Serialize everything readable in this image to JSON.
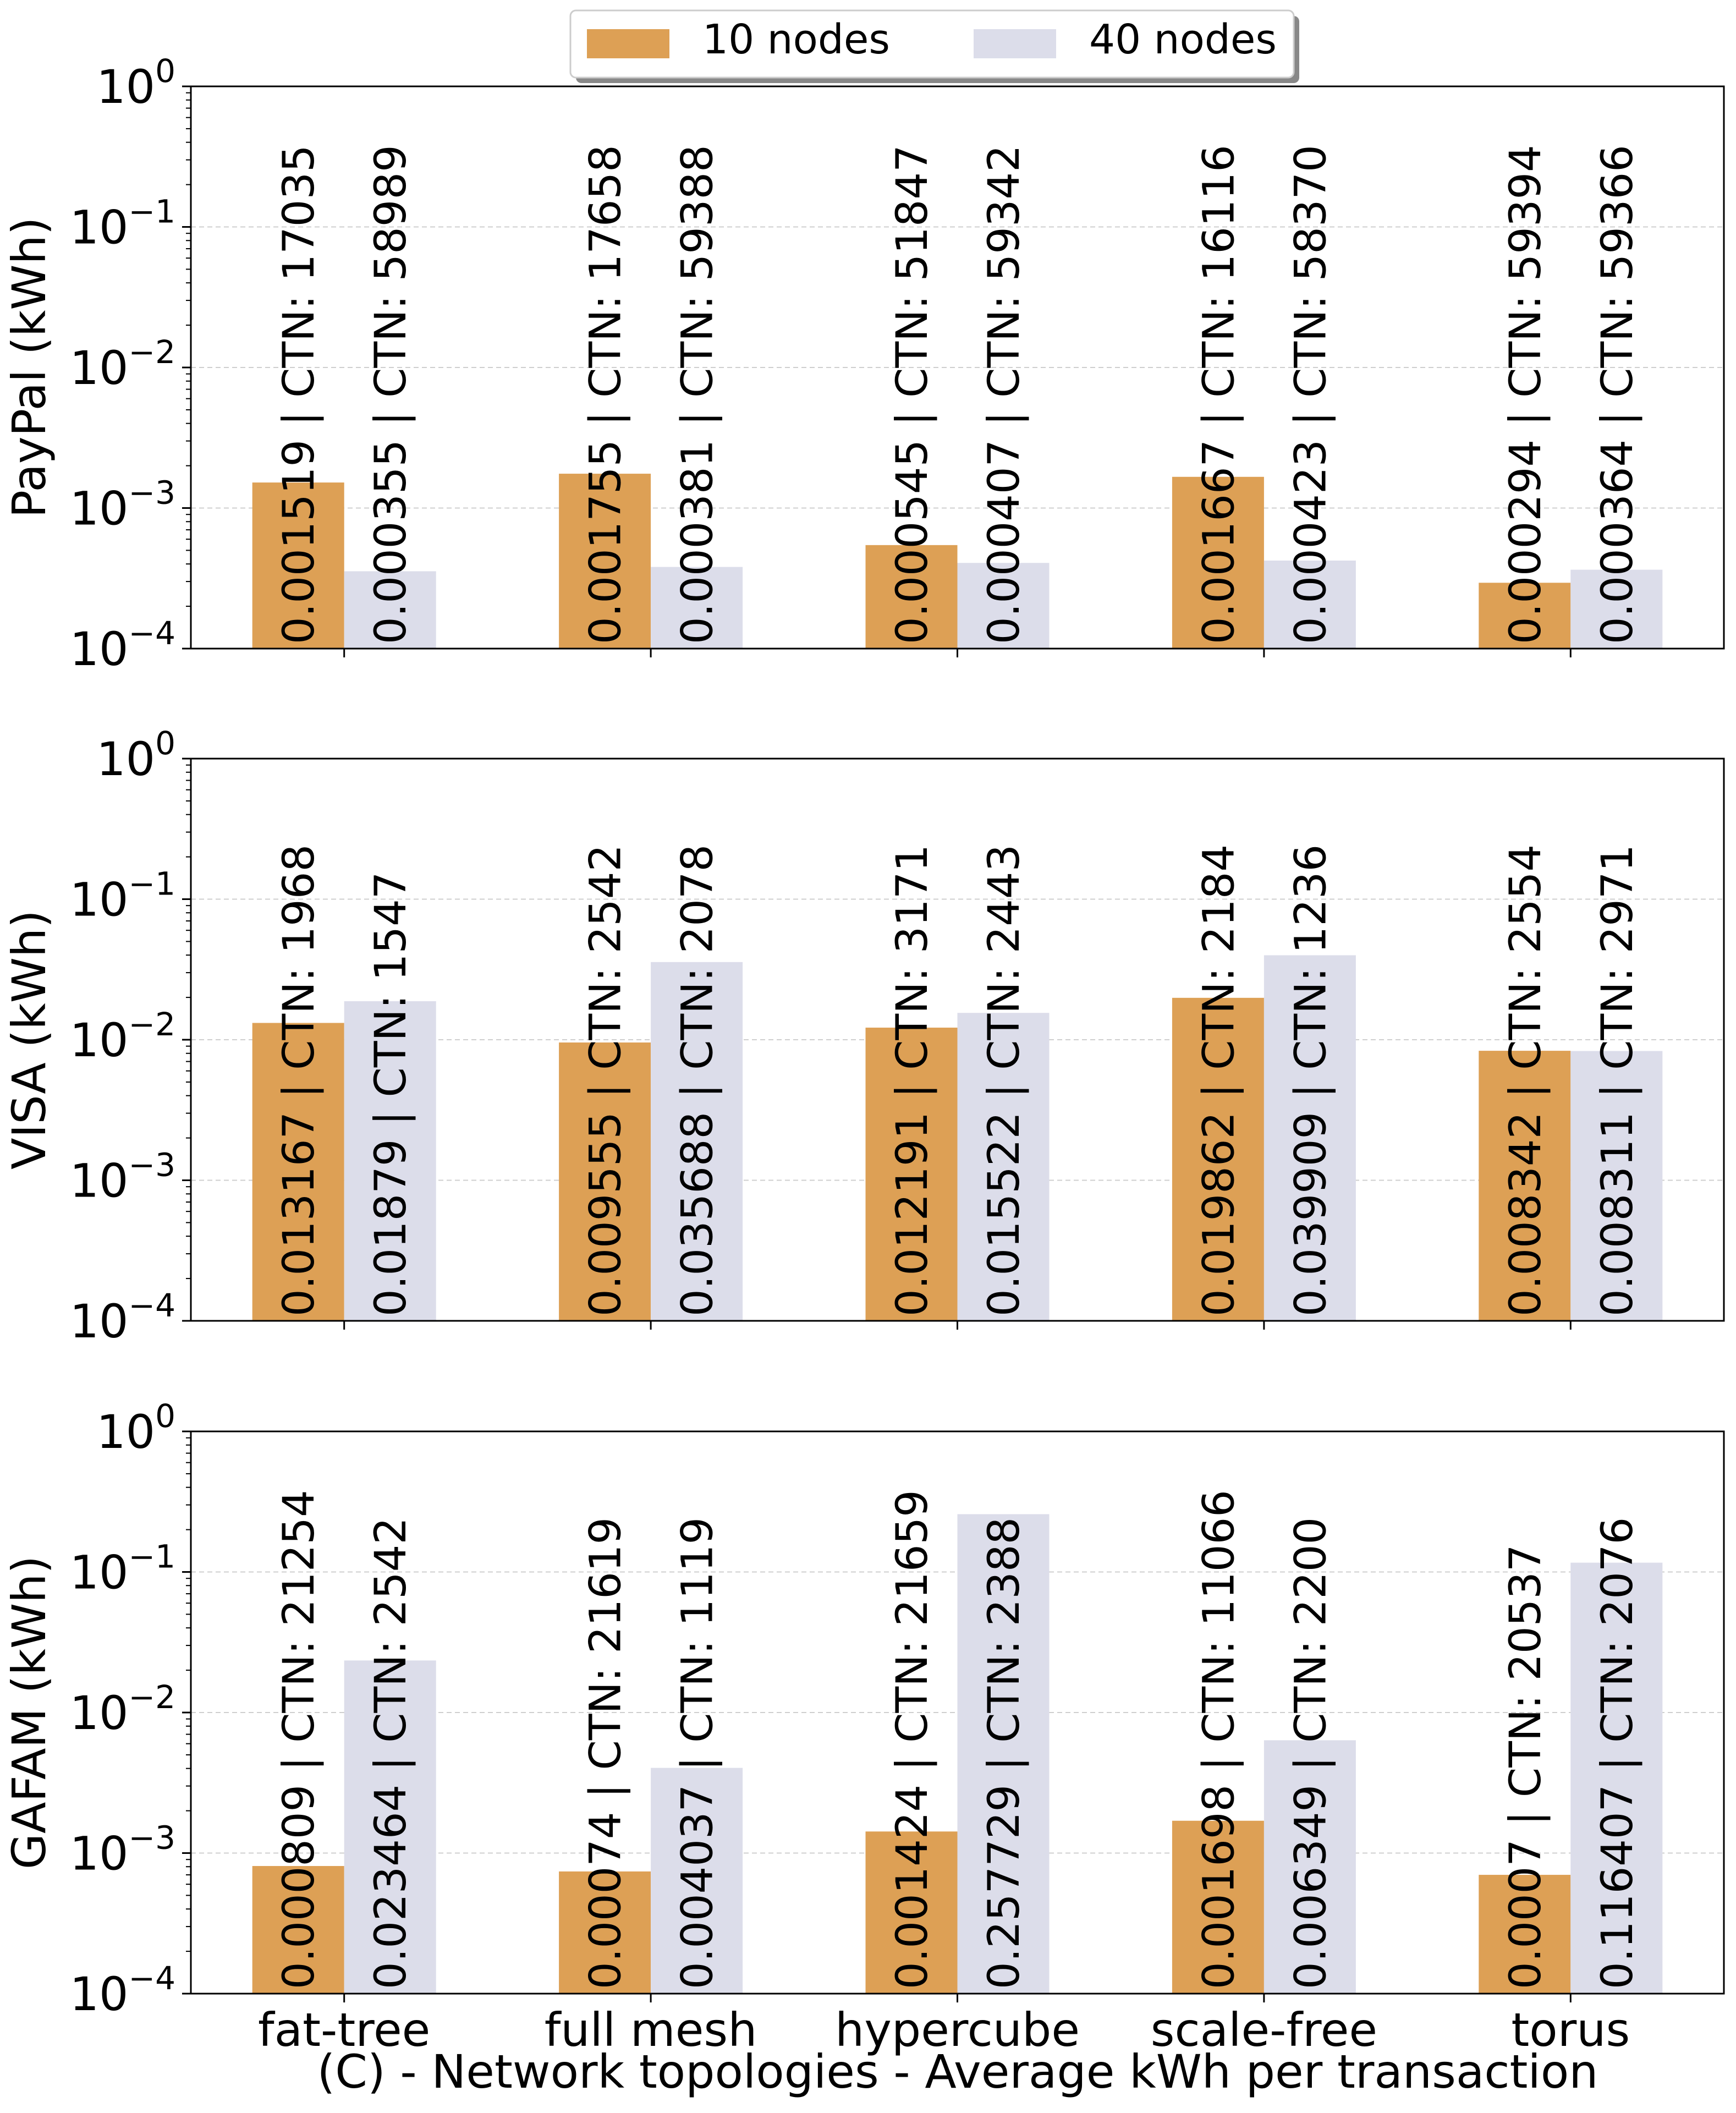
{
  "legend": {
    "location": "upper center",
    "entries": [
      {
        "label": "10 nodes",
        "color": "#DDA055"
      },
      {
        "label": "40 nodes",
        "color": "#DCDDEA"
      }
    ]
  },
  "chart_data": [
    {
      "type": "bar",
      "ylabel": "PayPal (kWh)",
      "yscale": "log",
      "ylim": [
        0.0001,
        1
      ],
      "yticks": [
        {
          "value": 1,
          "base": "10",
          "exp": "0"
        },
        {
          "value": 0.1,
          "base": "10",
          "exp": "−1"
        },
        {
          "value": 0.01,
          "base": "10",
          "exp": "−2"
        },
        {
          "value": 0.001,
          "base": "10",
          "exp": "−3"
        },
        {
          "value": 0.0001,
          "base": "10",
          "exp": "−4"
        }
      ],
      "grid": "horizontal dashed",
      "categories": [
        "fat-tree",
        "full mesh",
        "hypercube",
        "scale-free",
        "torus"
      ],
      "series": [
        {
          "name": "10 nodes",
          "color": "#DDA055",
          "values": [
            0.001519,
            0.001755,
            0.000545,
            0.001667,
            0.000294
          ],
          "labels": [
            "0.001519 | CTN: 17035",
            "0.001755 | CTN: 17658",
            "0.000545 | CTN: 51847",
            "0.001667 | CTN: 16116",
            "0.000294 | CTN: 59394"
          ]
        },
        {
          "name": "40 nodes",
          "color": "#DCDDEA",
          "values": [
            0.000355,
            0.000381,
            0.000407,
            0.000423,
            0.000364
          ],
          "labels": [
            "0.000355 | CTN: 58989",
            "0.000381 | CTN: 59388",
            "0.000407 | CTN: 59342",
            "0.000423 | CTN: 58370",
            "0.000364 | CTN: 59366"
          ]
        }
      ]
    },
    {
      "type": "bar",
      "ylabel": "VISA (kWh)",
      "yscale": "log",
      "ylim": [
        0.0001,
        1
      ],
      "yticks": [
        {
          "value": 1,
          "base": "10",
          "exp": "0"
        },
        {
          "value": 0.1,
          "base": "10",
          "exp": "−1"
        },
        {
          "value": 0.01,
          "base": "10",
          "exp": "−2"
        },
        {
          "value": 0.001,
          "base": "10",
          "exp": "−3"
        },
        {
          "value": 0.0001,
          "base": "10",
          "exp": "−4"
        }
      ],
      "grid": "horizontal dashed",
      "categories": [
        "fat-tree",
        "full mesh",
        "hypercube",
        "scale-free",
        "torus"
      ],
      "series": [
        {
          "name": "10 nodes",
          "color": "#DDA055",
          "values": [
            0.013167,
            0.009555,
            0.012191,
            0.019862,
            0.008342
          ],
          "labels": [
            "0.013167 | CTN: 1968",
            "0.009555 | CTN: 2542",
            "0.012191 | CTN: 3171",
            "0.019862 | CTN: 2184",
            "0.008342 | CTN: 2554"
          ]
        },
        {
          "name": "40 nodes",
          "color": "#DCDDEA",
          "values": [
            0.01879,
            0.035688,
            0.015522,
            0.039909,
            0.008311
          ],
          "labels": [
            "0.01879 | CTN: 1547",
            "0.035688 | CTN: 2078",
            "0.015522 | CTN: 2443",
            "0.039909 | CTN: 1236",
            "0.008311 | CTN: 2971"
          ]
        }
      ]
    },
    {
      "type": "bar",
      "ylabel": "GAFAM (kWh)",
      "xlabel": "(C) - Network topologies - Average kWh per transaction",
      "yscale": "log",
      "ylim": [
        0.0001,
        1
      ],
      "yticks": [
        {
          "value": 1,
          "base": "10",
          "exp": "0"
        },
        {
          "value": 0.1,
          "base": "10",
          "exp": "−1"
        },
        {
          "value": 0.01,
          "base": "10",
          "exp": "−2"
        },
        {
          "value": 0.001,
          "base": "10",
          "exp": "−3"
        },
        {
          "value": 0.0001,
          "base": "10",
          "exp": "−4"
        }
      ],
      "grid": "horizontal dashed",
      "categories": [
        "fat-tree",
        "full mesh",
        "hypercube",
        "scale-free",
        "torus"
      ],
      "series": [
        {
          "name": "10 nodes",
          "color": "#DDA055",
          "values": [
            0.000809,
            0.00074,
            0.001424,
            0.001698,
            0.0007
          ],
          "labels": [
            "0.000809 | CTN: 21254",
            "0.00074 | CTN: 21619",
            "0.001424 | CTN: 21659",
            "0.001698 | CTN: 11066",
            "0.0007 | CTN: 20537"
          ]
        },
        {
          "name": "40 nodes",
          "color": "#DCDDEA",
          "values": [
            0.023464,
            0.004037,
            0.257729,
            0.006349,
            0.116407
          ],
          "labels": [
            "0.023464 | CTN: 2542",
            "0.004037 | CTN: 1119",
            "0.257729 | CTN: 2388",
            "0.006349 | CTN: 2200",
            "0.116407 | CTN: 2076"
          ]
        }
      ]
    }
  ]
}
